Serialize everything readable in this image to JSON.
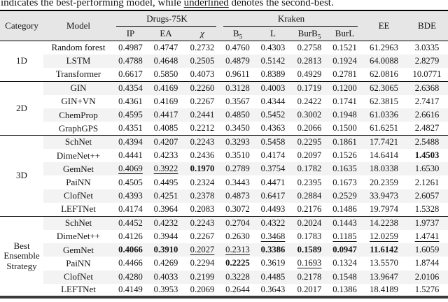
{
  "caption": {
    "prefix": "indicates the best-performing model, while ",
    "underlined_word": "underlined",
    "suffix": " denotes the second-best."
  },
  "colors": {
    "header_background": "#e6e6e6",
    "row_stripe": "#f3f3f3",
    "rule_color": "#000000",
    "bottom_rule_color": "#3a3a3a"
  },
  "table": {
    "header": {
      "category": "Category",
      "model": "Model",
      "group_drugs": "Drugs-75K",
      "group_kraken": "Kraken",
      "ee": "EE",
      "bde": "BDE",
      "sub_headers": [
        {
          "text": "IP"
        },
        {
          "text": "EA"
        },
        {
          "text": "χ",
          "italic": true
        },
        {
          "text": "B",
          "sub": "5"
        },
        {
          "text": "L"
        },
        {
          "text": "BurB",
          "sub": "5"
        },
        {
          "text": "BurL"
        }
      ]
    },
    "groups": [
      {
        "category": "1D",
        "rows": [
          {
            "model": "Random forest",
            "values": [
              "0.4987",
              "0.4747",
              "0.2732",
              "0.4760",
              "0.4303",
              "0.2758",
              "0.1521",
              "61.2963",
              "3.0335"
            ]
          },
          {
            "model": "LSTM",
            "values": [
              "0.4788",
              "0.4648",
              "0.2505",
              "0.4879",
              "0.5142",
              "0.2813",
              "0.1924",
              "64.0088",
              "2.8279"
            ]
          },
          {
            "model": "Transformer",
            "values": [
              "0.6617",
              "0.5850",
              "0.4073",
              "0.9611",
              "0.8389",
              "0.4929",
              "0.2781",
              "62.0816",
              "10.0771"
            ]
          }
        ]
      },
      {
        "category": "2D",
        "rows": [
          {
            "model": "GIN",
            "values": [
              "0.4354",
              "0.4169",
              "0.2260",
              "0.3128",
              "0.4003",
              "0.1719",
              "0.1200",
              "62.3065",
              "2.6368"
            ]
          },
          {
            "model": "GIN+VN",
            "values": [
              "0.4361",
              "0.4169",
              "0.2267",
              "0.3567",
              "0.4344",
              "0.2422",
              "0.1741",
              "62.3815",
              "2.7417"
            ]
          },
          {
            "model": "ChemProp",
            "values": [
              "0.4595",
              "0.4417",
              "0.2441",
              "0.4850",
              "0.5452",
              "0.3002",
              "0.1948",
              "61.0336",
              "2.6616"
            ]
          },
          {
            "model": "GraphGPS",
            "values": [
              "0.4351",
              "0.4085",
              "0.2212",
              "0.3450",
              "0.4363",
              "0.2066",
              "0.1500",
              "61.6251",
              "2.4827"
            ]
          }
        ]
      },
      {
        "category": "3D",
        "rows": [
          {
            "model": "SchNet",
            "values": [
              "0.4394",
              "0.4207",
              "0.2243",
              "0.3293",
              "0.5458",
              "0.2295",
              "0.1861",
              "17.7421",
              "2.5488"
            ]
          },
          {
            "model": "DimeNet++",
            "values": [
              "0.4441",
              "0.4233",
              "0.2436",
              "0.3510",
              "0.4174",
              "0.2097",
              "0.1526",
              "14.6414",
              "1.4503"
            ],
            "styles": [
              "",
              "",
              "",
              "",
              "",
              "",
              "",
              "",
              "b"
            ]
          },
          {
            "model": "GemNet",
            "values": [
              "0.4069",
              "0.3922",
              "0.1970",
              "0.2789",
              "0.3754",
              "0.1782",
              "0.1635",
              "18.0338",
              "1.6530"
            ],
            "styles": [
              "u",
              "u",
              "b",
              "",
              "",
              "",
              "",
              "",
              ""
            ]
          },
          {
            "model": "PaiNN",
            "values": [
              "0.4505",
              "0.4495",
              "0.2324",
              "0.3443",
              "0.4471",
              "0.2395",
              "0.1673",
              "20.2359",
              "2.1261"
            ]
          },
          {
            "model": "ClofNet",
            "values": [
              "0.4393",
              "0.4251",
              "0.2378",
              "0.4873",
              "0.6417",
              "0.2884",
              "0.2529",
              "33.9473",
              "2.6057"
            ]
          },
          {
            "model": "LEFTNet",
            "values": [
              "0.4174",
              "0.3964",
              "0.2083",
              "0.3072",
              "0.4493",
              "0.2176",
              "0.1486",
              "19.7974",
              "1.5328"
            ]
          }
        ]
      },
      {
        "category": "Best Ensemble Strategy",
        "rows": [
          {
            "model": "SchNet",
            "values": [
              "0.4452",
              "0.4232",
              "0.2243",
              "0.2704",
              "0.4322",
              "0.2024",
              "0.1443",
              "14.2238",
              "1.9737"
            ]
          },
          {
            "model": "DimeNet++",
            "values": [
              "0.4126",
              "0.3944",
              "0.2267",
              "0.2630",
              "0.3468",
              "0.1783",
              "0.1185",
              "12.0259",
              "1.4741"
            ],
            "styles": [
              "",
              "",
              "",
              "",
              "u",
              "",
              "u",
              "u",
              "u"
            ]
          },
          {
            "model": "GemNet",
            "values": [
              "0.4066",
              "0.3910",
              "0.2027",
              "0.2313",
              "0.3386",
              "0.1589",
              "0.0947",
              "11.6142",
              "1.6059"
            ],
            "styles": [
              "b",
              "b",
              "u",
              "u",
              "b",
              "b",
              "b",
              "b",
              ""
            ]
          },
          {
            "model": "PaiNN",
            "values": [
              "0.4466",
              "0.4269",
              "0.2294",
              "0.2225",
              "0.3619",
              "0.1693",
              "0.1324",
              "13.5570",
              "1.8744"
            ],
            "styles": [
              "",
              "",
              "",
              "b",
              "",
              "u",
              "",
              "",
              ""
            ]
          },
          {
            "model": "ClofNet",
            "values": [
              "0.4280",
              "0.4033",
              "0.2199",
              "0.3228",
              "0.4485",
              "0.2178",
              "0.1548",
              "13.9647",
              "2.0106"
            ]
          },
          {
            "model": "LEFTNet",
            "values": [
              "0.4149",
              "0.3953",
              "0.2069",
              "0.2644",
              "0.3643",
              "0.2017",
              "0.1386",
              "18.4189",
              "1.5276"
            ]
          }
        ]
      }
    ]
  }
}
